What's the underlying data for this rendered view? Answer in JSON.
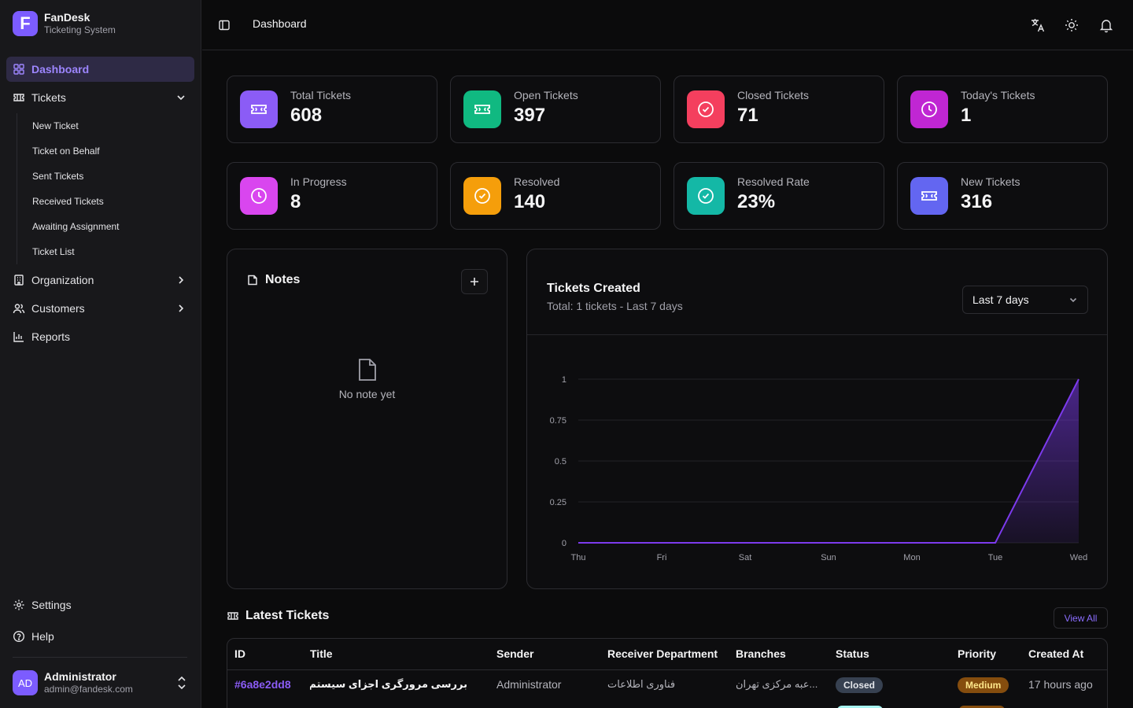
{
  "brand": {
    "logo_letter": "F",
    "name": "FanDesk",
    "subtitle": "Ticketing System"
  },
  "nav": {
    "dashboard": "Dashboard",
    "tickets": "Tickets",
    "ticket_sub": [
      "New Ticket",
      "Ticket on Behalf",
      "Sent Tickets",
      "Received Tickets",
      "Awaiting Assignment",
      "Ticket List"
    ],
    "organization": "Organization",
    "customers": "Customers",
    "reports": "Reports",
    "settings": "Settings",
    "help": "Help"
  },
  "user": {
    "initials": "AD",
    "name": "Administrator",
    "email": "admin@fandesk.com"
  },
  "header": {
    "title": "Dashboard"
  },
  "stats": [
    {
      "label": "Total Tickets",
      "value": "608",
      "color": "#8b5cf6",
      "icon": "ticket-icon"
    },
    {
      "label": "Open Tickets",
      "value": "397",
      "color": "#10b981",
      "icon": "ticket-icon"
    },
    {
      "label": "Closed Tickets",
      "value": "71",
      "color": "#f43f5e",
      "icon": "check-circle-icon"
    },
    {
      "label": "Today's Tickets",
      "value": "1",
      "color": "#c026d3",
      "icon": "clock-icon"
    },
    {
      "label": "In Progress",
      "value": "8",
      "color": "#d946ef",
      "icon": "clock-icon"
    },
    {
      "label": "Resolved",
      "value": "140",
      "color": "#f59e0b",
      "icon": "check-circle-icon"
    },
    {
      "label": "Resolved Rate",
      "value": "23%",
      "color": "#14b8a6",
      "icon": "check-circle-icon"
    },
    {
      "label": "New Tickets",
      "value": "316",
      "color": "#6366f1",
      "icon": "ticket-icon"
    }
  ],
  "notes": {
    "title": "Notes",
    "empty": "No note yet"
  },
  "chart_panel": {
    "title": "Tickets Created",
    "subtitle": "Total: 1 tickets - Last 7 days",
    "range": "Last 7 days"
  },
  "chart_data": {
    "type": "area",
    "x": [
      "Thu",
      "Fri",
      "Sat",
      "Sun",
      "Mon",
      "Tue",
      "Wed"
    ],
    "series": [
      {
        "values": [
          0,
          0,
          0,
          0,
          0,
          0,
          1
        ]
      }
    ],
    "yticks": [
      "0",
      "0.25",
      "0.5",
      "0.75",
      "1"
    ],
    "ylim": [
      0,
      1
    ],
    "color": "#7c3aed"
  },
  "latest": {
    "title": "Latest Tickets",
    "view_all": "View All",
    "columns": [
      "ID",
      "Title",
      "Sender",
      "Receiver Department",
      "Branches",
      "Status",
      "Priority",
      "Created At"
    ],
    "rows": [
      {
        "id": "#6a8e2dd8",
        "title": "بررسی مرورگری اجزای سیستم — ار...",
        "sender": "Administrator",
        "department": "فناوری اطلاعات",
        "branch": "...عبه مرکزی تهران",
        "status": "Closed",
        "priority": "Medium",
        "created": "17 hours ago"
      }
    ]
  }
}
